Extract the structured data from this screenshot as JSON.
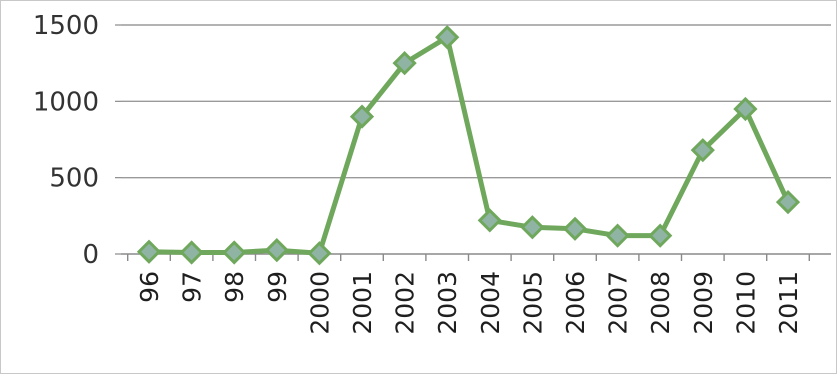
{
  "chart_data": {
    "type": "line",
    "title": "",
    "xlabel": "",
    "ylabel": "",
    "categories": [
      "96",
      "97",
      "98",
      "99",
      "2000",
      "2001",
      "2002",
      "2003",
      "2004",
      "2005",
      "2006",
      "2007",
      "2008",
      "2009",
      "2010",
      "2011"
    ],
    "series": [
      {
        "values": [
          15,
          10,
          10,
          25,
          5,
          900,
          1250,
          1420,
          220,
          175,
          165,
          120,
          120,
          680,
          950,
          340
        ],
        "color": "#6fa85c",
        "marker": "diamond",
        "marker_color": "#8fb4a4"
      }
    ],
    "yticks": [
      "0",
      "500",
      "1000",
      "1500"
    ],
    "ylim": [
      0,
      1500
    ],
    "grid": true,
    "legend": "none"
  }
}
